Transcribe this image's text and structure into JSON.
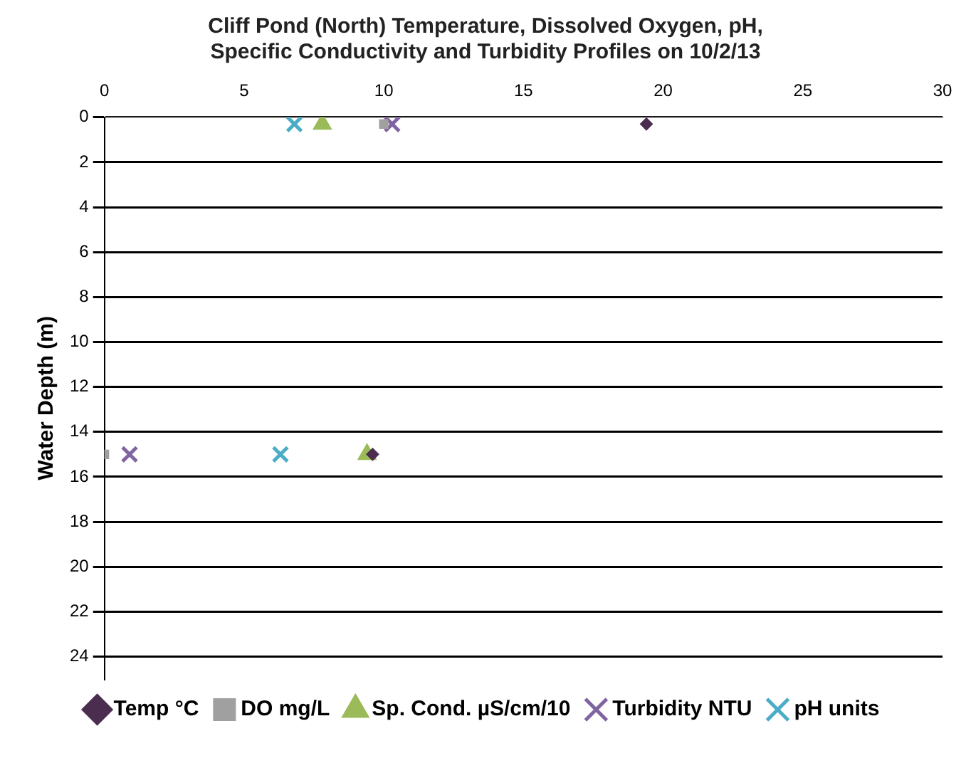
{
  "chart_data": {
    "type": "scatter",
    "title": [
      "Cliff Pond (North) Temperature, Dissolved Oxygen, pH,",
      "Specific Conductivity and Turbidity Profiles on 10/2/13"
    ],
    "ylabel": "Water Depth (m)",
    "xlim": [
      0,
      30
    ],
    "xticks": [
      0,
      5,
      10,
      15,
      20,
      25,
      30
    ],
    "ylim": [
      25,
      0
    ],
    "yticks": [
      0,
      2,
      4,
      6,
      8,
      10,
      12,
      14,
      16,
      18,
      20,
      22,
      24
    ],
    "grid": "y",
    "legend": "bottom",
    "series": [
      {
        "name": "Temp °C",
        "color": "#4b2d4f",
        "marker": "diamond",
        "x": [
          19.4,
          9.6
        ],
        "values": [
          0.3,
          15
        ]
      },
      {
        "name": "DO mg/L",
        "color": "#a0a0a0",
        "marker": "square",
        "x": [
          10,
          0
        ],
        "values": [
          0.3,
          15
        ]
      },
      {
        "name": "Sp. Cond. µS/cm/10",
        "color": "#9bbb59",
        "marker": "triangle",
        "x": [
          7.8,
          9.4
        ],
        "values": [
          0.3,
          15
        ]
      },
      {
        "name": "Turbidity NTU",
        "color": "#8064a2",
        "marker": "cross",
        "x": [
          10.3,
          0.9
        ],
        "values": [
          0.3,
          15
        ]
      },
      {
        "name": "pH units",
        "color": "#4bacc6",
        "marker": "cross",
        "x": [
          6.8,
          6.3
        ],
        "values": [
          0.3,
          15
        ]
      }
    ]
  }
}
